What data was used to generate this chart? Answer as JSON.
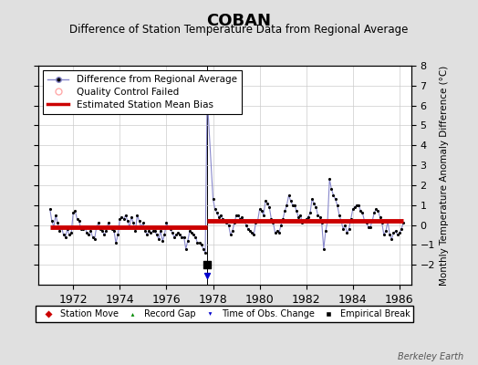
{
  "title": "COBAN",
  "subtitle": "Difference of Station Temperature Data from Regional Average",
  "ylabel": "Monthly Temperature Anomaly Difference (°C)",
  "xlim": [
    1970.5,
    1986.5
  ],
  "ylim": [
    -3,
    8
  ],
  "yticks": [
    -2,
    -1,
    0,
    1,
    2,
    3,
    4,
    5,
    6,
    7,
    8
  ],
  "xticks": [
    1972,
    1974,
    1976,
    1978,
    1980,
    1982,
    1984,
    1986
  ],
  "background_color": "#e0e0e0",
  "plot_bg_color": "#ffffff",
  "grid_color": "#cccccc",
  "line_color": "#8888cc",
  "dot_color": "#000000",
  "bias_color": "#cc0000",
  "bias_value_1": -0.13,
  "bias_value_2": 0.22,
  "bias_break": 1977.75,
  "empirical_break_x": 1977.75,
  "empirical_break_y": -2.0,
  "time_of_obs_x": 1977.75,
  "time_of_obs_y": -2.55,
  "watermark": "Berkeley Earth",
  "data_x": [
    1971.0,
    1971.083,
    1971.167,
    1971.25,
    1971.333,
    1971.417,
    1971.5,
    1971.583,
    1971.667,
    1971.75,
    1971.833,
    1971.917,
    1972.0,
    1972.083,
    1972.167,
    1972.25,
    1972.333,
    1972.417,
    1972.5,
    1972.583,
    1972.667,
    1972.75,
    1972.833,
    1972.917,
    1973.0,
    1973.083,
    1973.167,
    1973.25,
    1973.333,
    1973.417,
    1973.5,
    1973.583,
    1973.667,
    1973.75,
    1973.833,
    1973.917,
    1974.0,
    1974.083,
    1974.167,
    1974.25,
    1974.333,
    1974.417,
    1974.5,
    1974.583,
    1974.667,
    1974.75,
    1974.833,
    1974.917,
    1975.0,
    1975.083,
    1975.167,
    1975.25,
    1975.333,
    1975.417,
    1975.5,
    1975.583,
    1975.667,
    1975.75,
    1975.833,
    1975.917,
    1976.0,
    1976.083,
    1976.167,
    1976.25,
    1976.333,
    1976.417,
    1976.5,
    1976.583,
    1976.667,
    1976.75,
    1976.833,
    1976.917,
    1977.0,
    1977.083,
    1977.167,
    1977.25,
    1977.333,
    1977.417,
    1977.5,
    1977.583,
    1977.667,
    1977.75,
    1978.0,
    1978.083,
    1978.167,
    1978.25,
    1978.333,
    1978.417,
    1978.5,
    1978.583,
    1978.667,
    1978.75,
    1978.833,
    1978.917,
    1979.0,
    1979.083,
    1979.167,
    1979.25,
    1979.333,
    1979.417,
    1979.5,
    1979.583,
    1979.667,
    1979.75,
    1979.833,
    1979.917,
    1980.0,
    1980.083,
    1980.167,
    1980.25,
    1980.333,
    1980.417,
    1980.5,
    1980.583,
    1980.667,
    1980.75,
    1980.833,
    1980.917,
    1981.0,
    1981.083,
    1981.167,
    1981.25,
    1981.333,
    1981.417,
    1981.5,
    1981.583,
    1981.667,
    1981.75,
    1981.833,
    1981.917,
    1982.0,
    1982.083,
    1982.167,
    1982.25,
    1982.333,
    1982.417,
    1982.5,
    1982.583,
    1982.667,
    1982.75,
    1982.833,
    1982.917,
    1983.0,
    1983.083,
    1983.167,
    1983.25,
    1983.333,
    1983.417,
    1983.5,
    1983.583,
    1983.667,
    1983.75,
    1983.833,
    1983.917,
    1984.0,
    1984.083,
    1984.167,
    1984.25,
    1984.333,
    1984.417,
    1984.5,
    1984.583,
    1984.667,
    1984.75,
    1984.833,
    1984.917,
    1985.0,
    1985.083,
    1985.167,
    1985.25,
    1985.333,
    1985.417,
    1985.5,
    1985.583,
    1985.667,
    1985.75,
    1985.833,
    1985.917,
    1986.0,
    1986.083,
    1986.167
  ],
  "data_y": [
    0.8,
    0.2,
    -0.1,
    0.5,
    0.1,
    -0.3,
    -0.1,
    -0.5,
    -0.6,
    -0.2,
    -0.5,
    -0.4,
    0.6,
    0.7,
    0.3,
    0.2,
    -0.2,
    -0.2,
    -0.1,
    -0.4,
    -0.5,
    -0.3,
    -0.6,
    -0.7,
    -0.1,
    0.1,
    -0.2,
    -0.3,
    -0.5,
    -0.3,
    0.1,
    -0.1,
    -0.2,
    -0.3,
    -0.9,
    -0.5,
    0.3,
    0.4,
    0.3,
    0.5,
    0.2,
    -0.1,
    0.4,
    0.1,
    -0.3,
    0.5,
    0.2,
    -0.1,
    0.1,
    -0.3,
    -0.5,
    -0.3,
    -0.4,
    -0.3,
    -0.3,
    -0.5,
    -0.7,
    -0.3,
    -0.8,
    -0.5,
    0.1,
    -0.1,
    -0.2,
    -0.4,
    -0.6,
    -0.5,
    -0.4,
    -0.5,
    -0.6,
    -0.6,
    -1.2,
    -0.8,
    -0.3,
    -0.4,
    -0.5,
    -0.6,
    -0.9,
    -0.9,
    -1.0,
    -1.2,
    -1.4,
    6.5,
    1.3,
    0.8,
    0.6,
    0.4,
    0.5,
    0.3,
    0.2,
    0.1,
    0.0,
    -0.5,
    -0.3,
    0.1,
    0.5,
    0.5,
    0.3,
    0.4,
    0.2,
    0.0,
    -0.2,
    -0.3,
    -0.4,
    -0.5,
    0.1,
    0.2,
    0.8,
    0.7,
    0.5,
    1.2,
    1.1,
    0.9,
    0.3,
    0.1,
    -0.4,
    -0.3,
    -0.4,
    0.0,
    0.3,
    0.7,
    1.0,
    1.5,
    1.2,
    1.0,
    1.0,
    0.7,
    0.4,
    0.5,
    0.1,
    0.2,
    0.3,
    0.4,
    0.6,
    1.3,
    1.1,
    0.9,
    0.5,
    0.4,
    0.1,
    -1.2,
    -0.3,
    0.2,
    2.3,
    1.8,
    1.5,
    1.3,
    1.0,
    0.5,
    0.2,
    -0.2,
    0.0,
    -0.4,
    -0.2,
    0.3,
    0.8,
    0.9,
    1.0,
    1.0,
    0.7,
    0.6,
    0.2,
    0.1,
    -0.1,
    -0.1,
    0.2,
    0.6,
    0.8,
    0.7,
    0.4,
    0.1,
    -0.5,
    -0.3,
    0.2,
    -0.5,
    -0.7,
    -0.4,
    -0.3,
    -0.5,
    -0.4,
    -0.2,
    0.1
  ]
}
